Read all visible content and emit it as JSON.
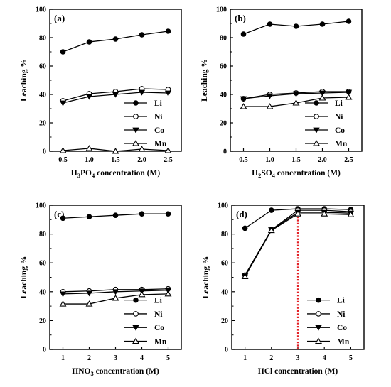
{
  "chart_data": [
    {
      "type": "line",
      "panel_label": "(a)",
      "x_label": {
        "pre": "H",
        "s1": "3",
        "mid": "PO",
        "s2": "4",
        "post": " concentration (M)"
      },
      "ylabel": "Leaching %",
      "x": [
        0.5,
        1.0,
        1.5,
        2.0,
        2.5
      ],
      "xticks": [
        "0.5",
        "1.0",
        "1.5",
        "2.0",
        "2.5"
      ],
      "xlim": [
        0.25,
        2.75
      ],
      "yticks": [
        "0",
        "20",
        "40",
        "60",
        "80",
        "100"
      ],
      "ylim": [
        0,
        100
      ],
      "legend": "bottom-right",
      "series": [
        {
          "name": "Li",
          "marker": "filled-circle",
          "values": [
            70,
            77,
            79,
            82,
            84.5
          ]
        },
        {
          "name": "Ni",
          "marker": "open-circle",
          "values": [
            35.5,
            40.5,
            42,
            44,
            43.5
          ]
        },
        {
          "name": "Co",
          "marker": "filled-triangle-down",
          "values": [
            34,
            38.5,
            40,
            41.5,
            41
          ]
        },
        {
          "name": "Mn",
          "marker": "open-triangle-up",
          "values": [
            0.5,
            2,
            0,
            1.5,
            0.5
          ]
        }
      ]
    },
    {
      "type": "line",
      "panel_label": "(b)",
      "x_label": {
        "pre": "H",
        "s1": "2",
        "mid": "SO",
        "s2": "4",
        "post": " concentration (M)"
      },
      "ylabel": "Leaching %",
      "x": [
        0.5,
        1.0,
        1.5,
        2.0,
        2.5
      ],
      "xticks": [
        "0.5",
        "1.0",
        "1.5",
        "2.0",
        "2.5"
      ],
      "xlim": [
        0.25,
        2.75
      ],
      "yticks": [
        "0",
        "20",
        "40",
        "60",
        "80",
        "100"
      ],
      "ylim": [
        0,
        100
      ],
      "legend": "bottom-right",
      "series": [
        {
          "name": "Li",
          "marker": "filled-circle",
          "values": [
            82.5,
            89.5,
            88,
            89.5,
            91.5
          ]
        },
        {
          "name": "Ni",
          "marker": "open-circle",
          "values": [
            37,
            40,
            41,
            42,
            42
          ]
        },
        {
          "name": "Co",
          "marker": "filled-triangle-down",
          "values": [
            37,
            39,
            40.5,
            41,
            41.5
          ]
        },
        {
          "name": "Mn",
          "marker": "open-triangle-up",
          "values": [
            31.5,
            31.5,
            34,
            37.5,
            38
          ]
        }
      ]
    },
    {
      "type": "line",
      "panel_label": "(c)",
      "x_label": {
        "pre": "HNO",
        "s1": "3",
        "mid": "",
        "s2": "",
        "post": " concentration (M)"
      },
      "ylabel": "Leaching %",
      "x": [
        1,
        2,
        3,
        4,
        5
      ],
      "xticks": [
        "1",
        "2",
        "3",
        "4",
        "5"
      ],
      "xlim": [
        0.5,
        5.5
      ],
      "yticks": [
        "0",
        "20",
        "40",
        "60",
        "80",
        "100"
      ],
      "ylim": [
        0,
        100
      ],
      "legend": "bottom-right",
      "series": [
        {
          "name": "Li",
          "marker": "filled-circle",
          "values": [
            91,
            92,
            93,
            94,
            94
          ]
        },
        {
          "name": "Ni",
          "marker": "open-circle",
          "values": [
            40,
            40.5,
            41.5,
            41.5,
            42
          ]
        },
        {
          "name": "Co",
          "marker": "filled-triangle-down",
          "values": [
            38.5,
            39,
            40,
            40.5,
            41
          ]
        },
        {
          "name": "Mn",
          "marker": "open-triangle-up",
          "values": [
            31.5,
            31.5,
            35.5,
            38,
            38.5
          ]
        }
      ]
    },
    {
      "type": "line",
      "panel_label": "(d)",
      "x_label": {
        "pre": "HCl concentration (M)",
        "s1": "",
        "mid": "",
        "s2": "",
        "post": ""
      },
      "ylabel": "Leaching %",
      "x": [
        1,
        2,
        3,
        4,
        5
      ],
      "xticks": [
        "1",
        "2",
        "3",
        "4",
        "5"
      ],
      "xlim": [
        0.5,
        5.5
      ],
      "yticks": [
        "0",
        "20",
        "40",
        "60",
        "80",
        "100"
      ],
      "ylim": [
        0,
        100
      ],
      "legend": "bottom-right",
      "marker_line": {
        "x": 3,
        "color": "#e31e24",
        "style": "dotted"
      },
      "series": [
        {
          "name": "Li",
          "marker": "filled-circle",
          "values": [
            84,
            96.5,
            97.5,
            97.5,
            97
          ]
        },
        {
          "name": "Ni",
          "marker": "open-circle",
          "values": [
            51.5,
            83,
            96.5,
            96.5,
            95.5
          ]
        },
        {
          "name": "Co",
          "marker": "filled-triangle-down",
          "values": [
            51,
            83,
            95,
            95,
            94.5
          ]
        },
        {
          "name": "Mn",
          "marker": "open-triangle-up",
          "values": [
            50.5,
            82.5,
            94,
            94,
            93.5
          ]
        }
      ]
    }
  ]
}
